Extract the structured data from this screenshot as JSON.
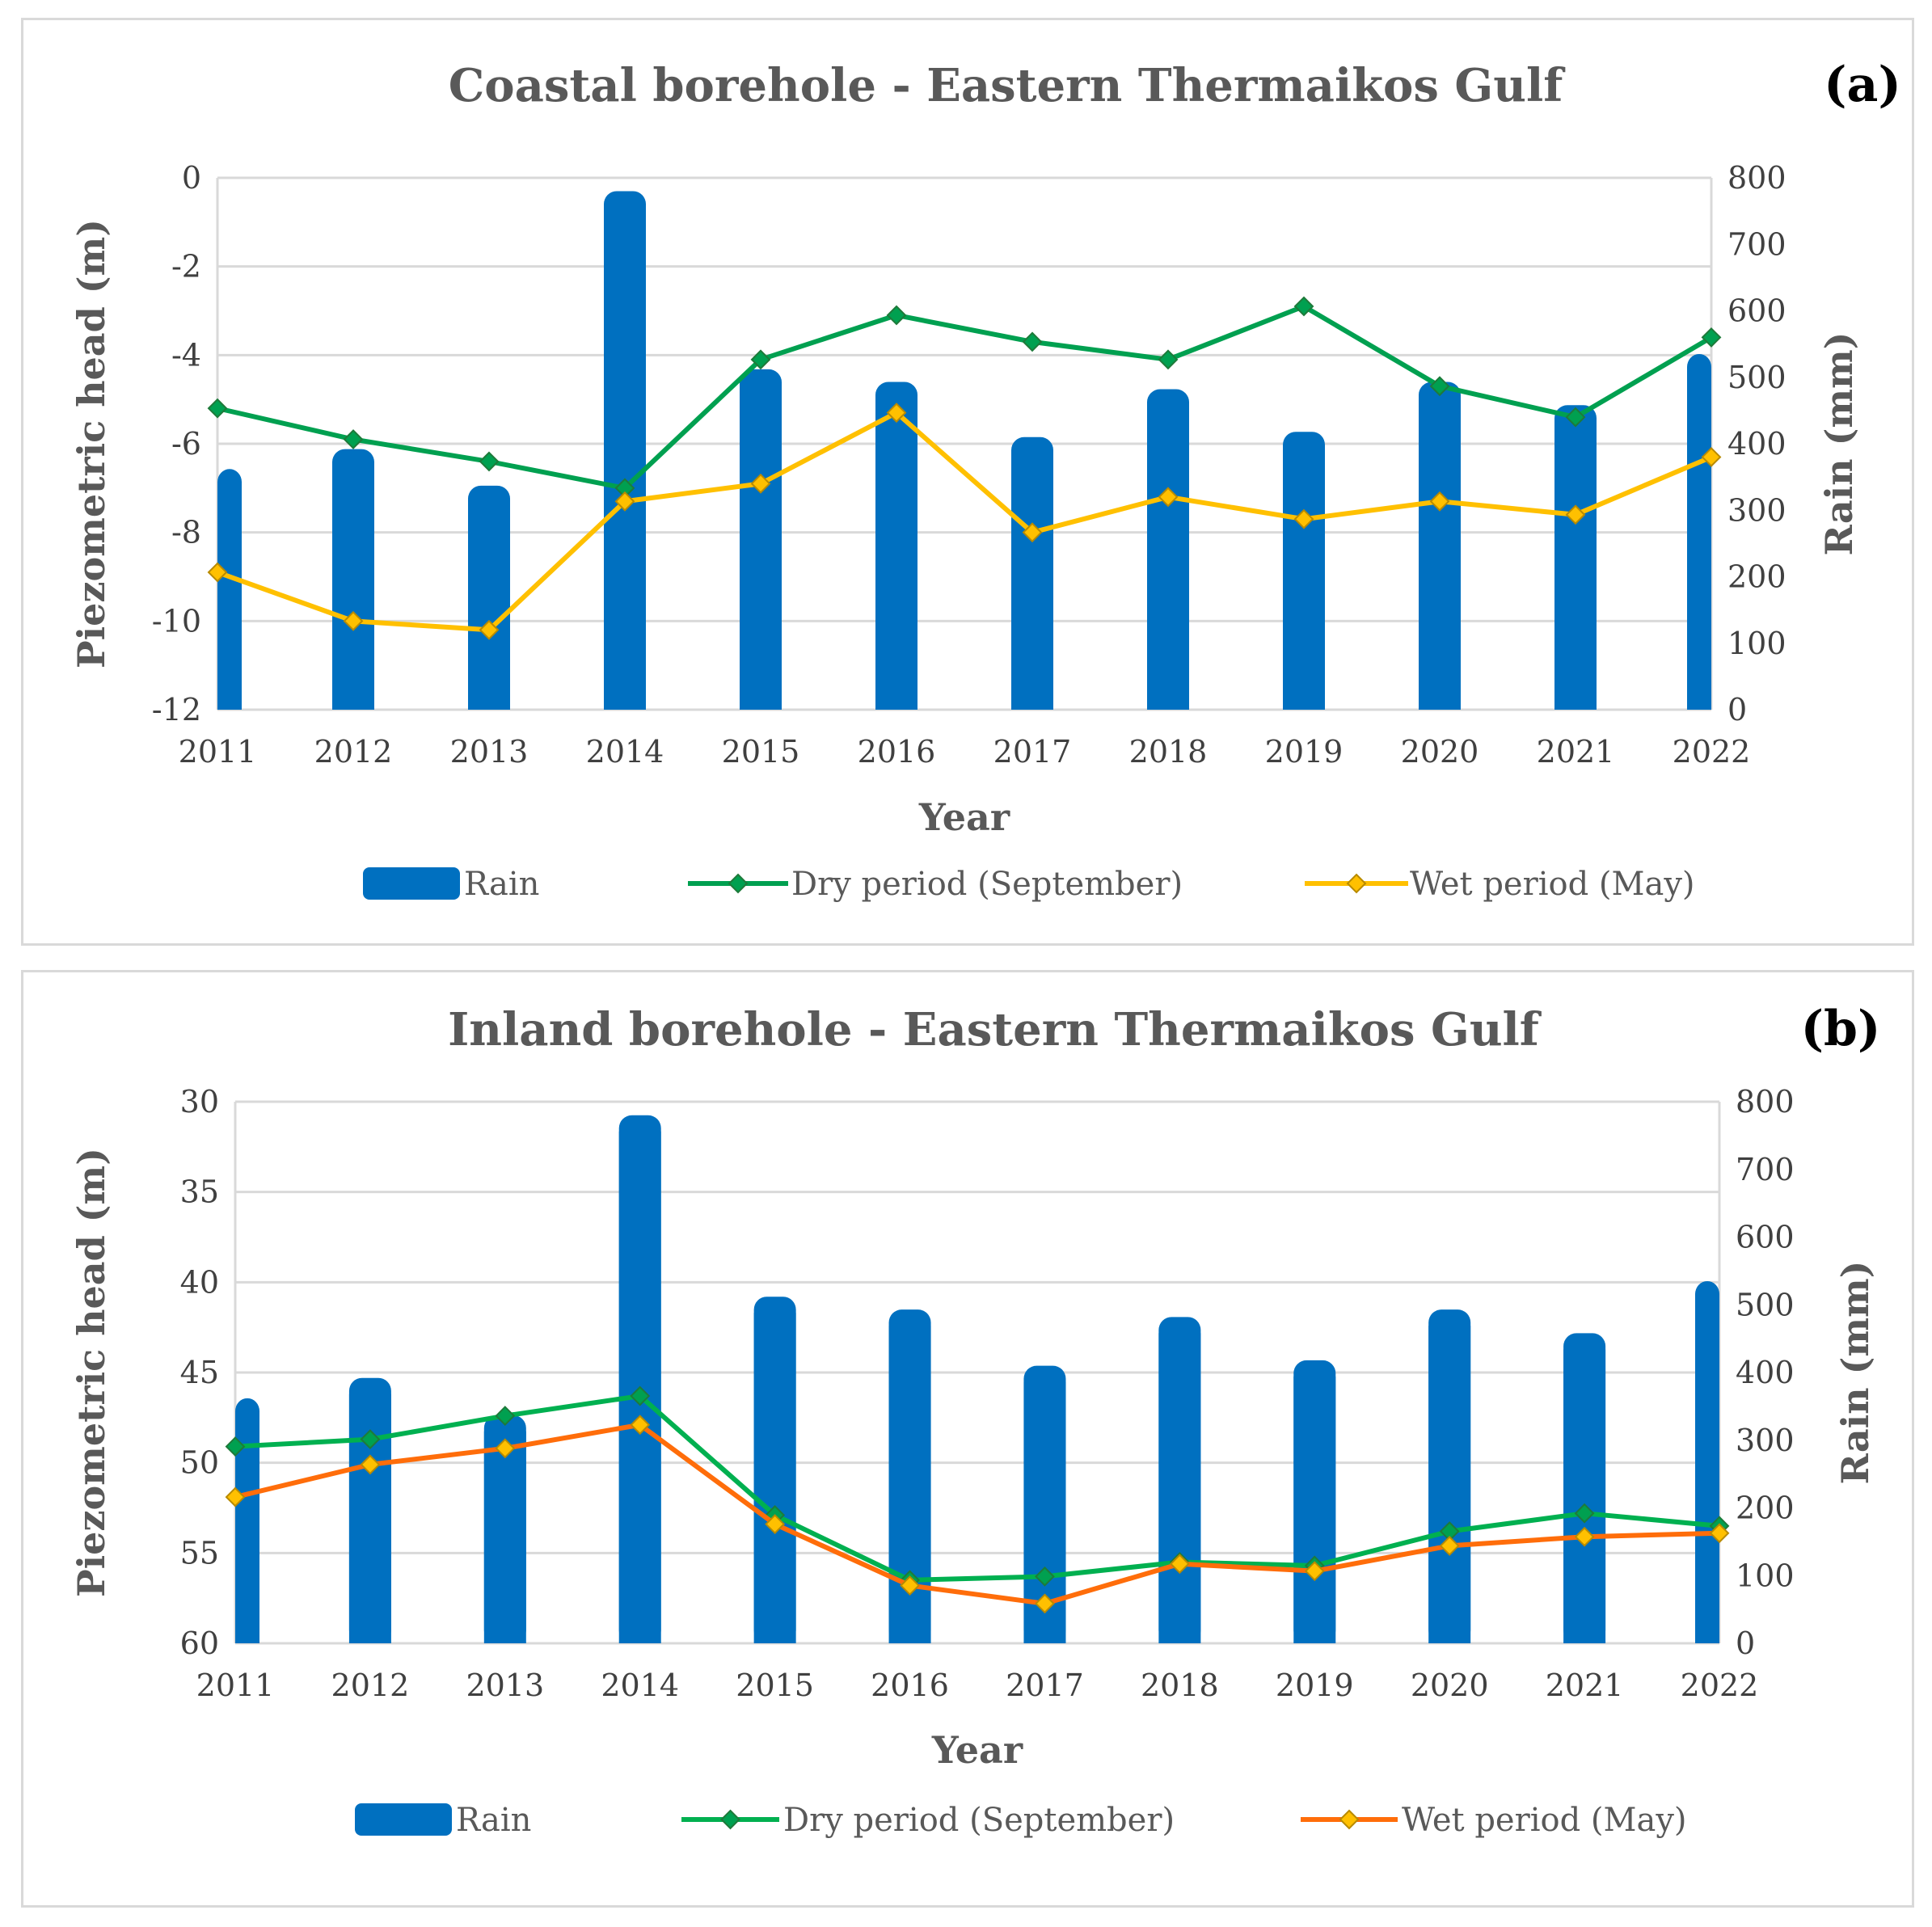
{
  "chart_data": [
    {
      "type": "bar+line",
      "title": "Coastal borehole - Eastern Thermaikos Gulf",
      "panel_label": "(a)",
      "xlabel": "Year",
      "ylabel_left": "Piezometric head (m)",
      "ylabel_right": "Rain (mm)",
      "categories": [
        "2011",
        "2012",
        "2013",
        "2014",
        "2015",
        "2016",
        "2017",
        "2018",
        "2019",
        "2020",
        "2021",
        "2022"
      ],
      "ylim_left": [
        -12,
        0
      ],
      "yticks_left": [
        0,
        -2,
        -4,
        -6,
        -8,
        -10,
        -12
      ],
      "ylim_right": [
        0,
        800
      ],
      "yticks_right": [
        800,
        700,
        600,
        500,
        400,
        300,
        200,
        100,
        0
      ],
      "legend": [
        "Rain",
        "Dry period (September)",
        "Wet period (May)"
      ],
      "series": [
        {
          "name": "Rain",
          "kind": "bar",
          "axis": "right",
          "color": "#0070C0",
          "values": [
            362,
            392,
            337,
            780,
            512,
            493,
            410,
            482,
            418,
            493,
            458,
            535
          ]
        },
        {
          "name": "Dry period (September)",
          "kind": "line",
          "axis": "left",
          "color": "#00A050",
          "values": [
            -5.2,
            -5.9,
            -6.4,
            -7.0,
            -4.1,
            -3.1,
            -3.7,
            -4.1,
            -2.9,
            -4.7,
            -5.4,
            -3.6
          ]
        },
        {
          "name": "Wet period (May)",
          "kind": "line",
          "axis": "left",
          "color": "#FFC000",
          "values": [
            -8.9,
            -10.0,
            -10.2,
            -7.3,
            -6.9,
            -5.3,
            -8.0,
            -7.2,
            -7.7,
            -7.3,
            -7.6,
            -6.3
          ]
        }
      ]
    },
    {
      "type": "bar+line",
      "title": "Inland borehole - Eastern Thermaikos Gulf",
      "panel_label": "(b)",
      "xlabel": "Year",
      "ylabel_left": "Piezometric head (m)",
      "ylabel_right": "Rain (mm)",
      "categories": [
        "2011",
        "2012",
        "2013",
        "2014",
        "2015",
        "2016",
        "2017",
        "2018",
        "2019",
        "2020",
        "2021",
        "2022"
      ],
      "ylim_left": [
        30,
        60
      ],
      "left_inverted": true,
      "yticks_left": [
        30,
        35,
        40,
        45,
        50,
        55,
        60
      ],
      "ylim_right": [
        0,
        800
      ],
      "yticks_right": [
        800,
        700,
        600,
        500,
        400,
        300,
        200,
        100,
        0
      ],
      "legend": [
        "Rain",
        "Dry period (September)",
        "Wet period (May)"
      ],
      "series": [
        {
          "name": "Rain",
          "kind": "bar",
          "axis": "right",
          "color": "#0070C0",
          "values": [
            362,
            392,
            337,
            780,
            512,
            493,
            410,
            482,
            418,
            493,
            458,
            535
          ]
        },
        {
          "name": "Dry period (September)",
          "kind": "line",
          "axis": "left",
          "color": "#00B050",
          "values": [
            49.1,
            48.7,
            47.4,
            46.3,
            52.9,
            56.5,
            56.3,
            55.5,
            55.7,
            53.8,
            52.8,
            53.5
          ]
        },
        {
          "name": "Wet period (May)",
          "kind": "line",
          "axis": "left",
          "color": "#FF6D0A",
          "values": [
            51.9,
            50.1,
            49.2,
            47.9,
            53.4,
            56.8,
            57.8,
            55.6,
            56.0,
            54.6,
            54.1,
            53.9
          ]
        }
      ]
    }
  ]
}
